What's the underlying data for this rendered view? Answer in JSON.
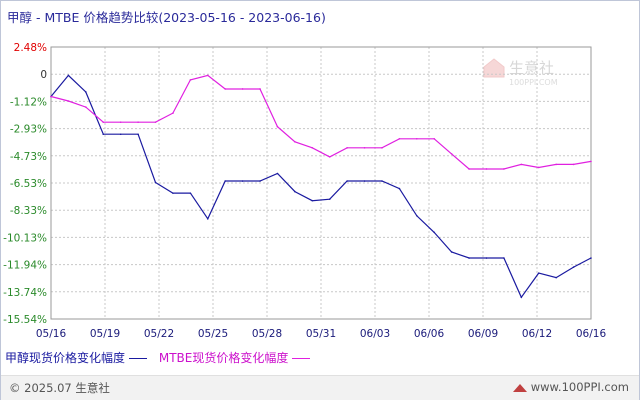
{
  "header": {
    "title": "甲醇 - MTBE 价格趋势比较(2023-05-16 - 2023-06-16)"
  },
  "watermark": {
    "text": "生意社",
    "sub": "100PPI.COM"
  },
  "footer": {
    "copyright": "© 2025.07 生意社",
    "site": "www.100PPI.com"
  },
  "colors": {
    "series1": "#1a1aa0",
    "series2": "#e020e0",
    "axis_pos": "#e00000",
    "axis_neg": "#2a8a2a",
    "grid": "#c8c8c8"
  },
  "chart_data": {
    "type": "line",
    "title": "甲醇 - MTBE 价格趋势比较(2023-05-16 - 2023-06-16)",
    "x_tick_labels": [
      "05/16",
      "05/19",
      "05/22",
      "05/25",
      "05/28",
      "05/31",
      "06/03",
      "06/06",
      "06/09",
      "06/12",
      "06/16"
    ],
    "y_tick_labels": [
      "2.48%",
      "0",
      "-1.12%",
      "-2.93%",
      "-4.73%",
      "-6.53%",
      "-8.33%",
      "-10.13%",
      "-11.94%",
      "-13.74%",
      "-15.54%"
    ],
    "ylim": [
      -15.54,
      2.48
    ],
    "x": [
      "05/16",
      "05/17",
      "05/18",
      "05/19",
      "05/20",
      "05/21",
      "05/22",
      "05/23",
      "05/24",
      "05/25",
      "05/26",
      "05/27",
      "05/28",
      "05/29",
      "05/30",
      "05/31",
      "06/01",
      "06/02",
      "06/03",
      "06/04",
      "06/05",
      "06/06",
      "06/07",
      "06/08",
      "06/09",
      "06/10",
      "06/11",
      "06/12",
      "06/13",
      "06/14",
      "06/15",
      "06/16"
    ],
    "grid": true,
    "legend_position": "bottom-left",
    "series": [
      {
        "name": "甲醇现货价格变化幅度",
        "values": [
          -0.8,
          0.6,
          -0.5,
          -3.3,
          -3.3,
          -3.3,
          -6.5,
          -7.2,
          -7.2,
          -8.9,
          -6.4,
          -6.4,
          -6.4,
          -5.9,
          -7.1,
          -7.7,
          -7.6,
          -6.4,
          -6.4,
          -6.4,
          -6.9,
          -8.7,
          -9.8,
          -11.1,
          -11.5,
          -11.5,
          -11.5,
          -14.1,
          -12.5,
          -12.8,
          -12.1,
          -11.5
        ]
      },
      {
        "name": "MTBE现货价格变化幅度",
        "values": [
          -0.8,
          -1.1,
          -1.5,
          -2.5,
          -2.5,
          -2.5,
          -2.5,
          -1.9,
          0.3,
          0.6,
          -0.3,
          -0.3,
          -0.3,
          -2.8,
          -3.8,
          -4.2,
          -4.8,
          -4.2,
          -4.2,
          -4.2,
          -3.6,
          -3.6,
          -3.6,
          -4.6,
          -5.6,
          -5.6,
          -5.6,
          -5.3,
          -5.5,
          -5.3,
          -5.3,
          -5.1
        ]
      }
    ]
  }
}
